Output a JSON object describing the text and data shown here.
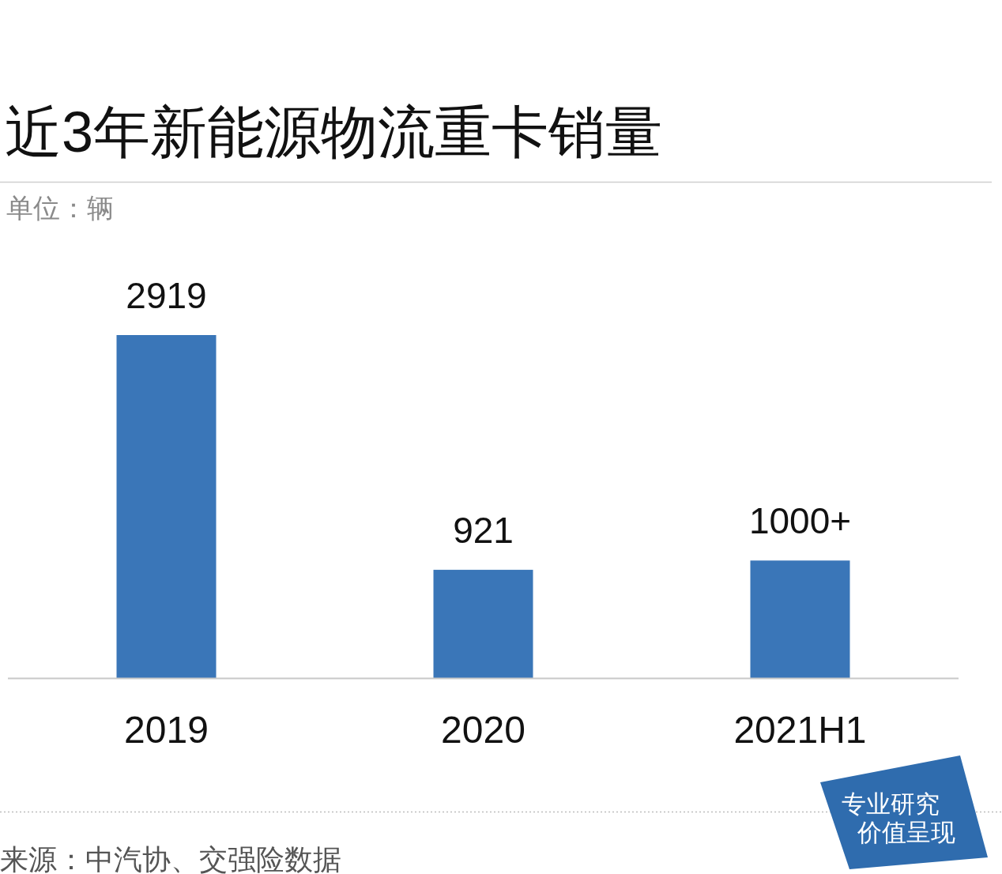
{
  "chart_data": {
    "type": "bar",
    "title": "近3年新能源物流重卡销量",
    "subtitle": "单位：辆",
    "categories": [
      "2019",
      "2020",
      "2021H1"
    ],
    "values": [
      2919,
      921,
      1000
    ],
    "value_labels": [
      "2919",
      "921",
      "1000+"
    ],
    "color": "#3a76b8",
    "tick_labels": "x",
    "annotations": [
      "来源：中汽协、交强险数据",
      "专业研究",
      "价值呈现"
    ]
  }
}
